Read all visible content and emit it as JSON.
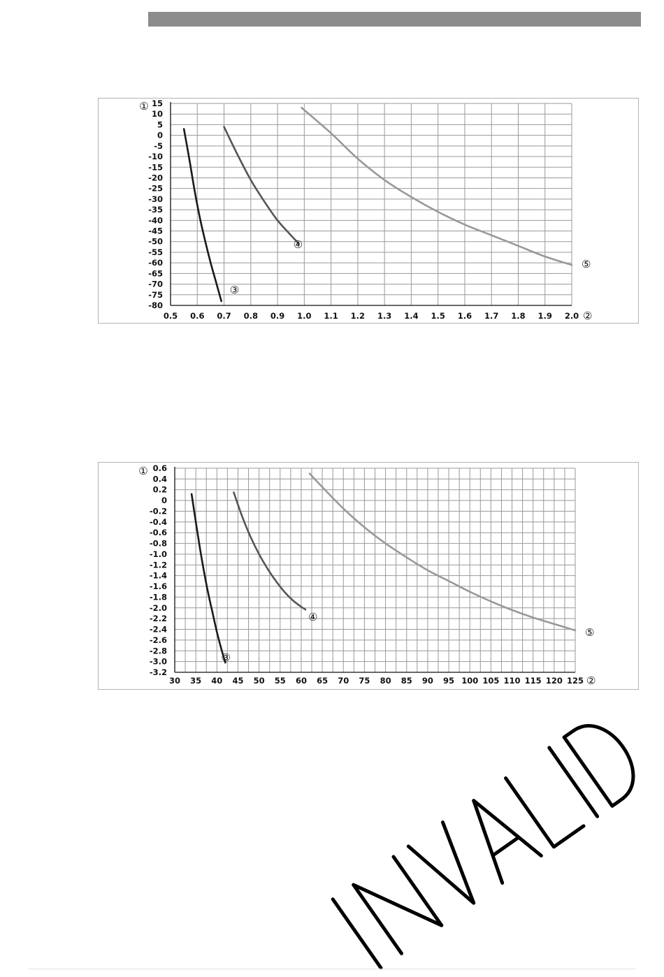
{
  "chart_data": [
    {
      "type": "line",
      "title": "",
      "xlabel": "②",
      "ylabel": "①",
      "xlim": [
        0.5,
        2.0
      ],
      "ylim": [
        -80,
        15
      ],
      "grid": true,
      "x_ticks": [
        "0.5",
        "0.6",
        "0.7",
        "0.8",
        "0.9",
        "1.0",
        "1.1",
        "1.2",
        "1.3",
        "1.4",
        "1.5",
        "1.6",
        "1.7",
        "1.8",
        "1.9",
        "2.0"
      ],
      "y_ticks": [
        "15",
        "10",
        "5",
        "0",
        "-5",
        "-10",
        "-15",
        "-20",
        "-25",
        "-30",
        "-35",
        "-40",
        "-45",
        "-50",
        "-55",
        "-60",
        "-65",
        "-70",
        "-75",
        "-80"
      ],
      "series": [
        {
          "label": "③",
          "color": "#1a1a1a",
          "points": [
            [
              0.55,
              3
            ],
            [
              0.57,
              -11
            ],
            [
              0.59,
              -26
            ],
            [
              0.61,
              -39
            ],
            [
              0.63,
              -50
            ],
            [
              0.65,
              -60
            ],
            [
              0.67,
              -69
            ],
            [
              0.69,
              -78
            ]
          ]
        },
        {
          "label": "④",
          "color": "#555555",
          "points": [
            [
              0.7,
              4
            ],
            [
              0.75,
              -9
            ],
            [
              0.8,
              -21
            ],
            [
              0.85,
              -31
            ],
            [
              0.9,
              -40
            ],
            [
              0.95,
              -47
            ],
            [
              0.98,
              -51
            ]
          ]
        },
        {
          "label": "⑤",
          "color": "#999999",
          "points": [
            [
              0.99,
              13
            ],
            [
              1.1,
              1
            ],
            [
              1.2,
              -11
            ],
            [
              1.3,
              -21
            ],
            [
              1.4,
              -29
            ],
            [
              1.5,
              -36
            ],
            [
              1.6,
              -42
            ],
            [
              1.7,
              -47
            ],
            [
              1.8,
              -52
            ],
            [
              1.9,
              -57
            ],
            [
              2.0,
              -61
            ]
          ]
        }
      ],
      "x_axis_marker": "②",
      "y_axis_marker": "①"
    },
    {
      "type": "line",
      "title": "",
      "xlabel": "②",
      "ylabel": "①",
      "xlim": [
        30,
        125
      ],
      "ylim": [
        -3.2,
        0.6
      ],
      "grid": true,
      "x_ticks": [
        "30",
        "35",
        "40",
        "45",
        "50",
        "55",
        "60",
        "65",
        "70",
        "75",
        "80",
        "85",
        "90",
        "95",
        "100",
        "105",
        "110",
        "115",
        "120",
        "125"
      ],
      "y_ticks": [
        "0.6",
        "0.4",
        "0.2",
        "0",
        "-0.2",
        "-0.4",
        "-0.6",
        "-0.8",
        "-1.0",
        "-1.2",
        "-1.4",
        "-1.6",
        "-1.8",
        "-2.0",
        "-2.2",
        "-2.4",
        "-2.6",
        "-2.8",
        "-3.0",
        "-3.2"
      ],
      "series": [
        {
          "label": "③",
          "color": "#1a1a1a",
          "points": [
            [
              34,
              0.12
            ],
            [
              35,
              -0.4
            ],
            [
              36,
              -0.9
            ],
            [
              37,
              -1.35
            ],
            [
              38,
              -1.75
            ],
            [
              39,
              -2.1
            ],
            [
              40,
              -2.45
            ],
            [
              41,
              -2.75
            ],
            [
              42,
              -3.02
            ]
          ]
        },
        {
          "label": "④",
          "color": "#555555",
          "points": [
            [
              44,
              0.15
            ],
            [
              46,
              -0.3
            ],
            [
              48,
              -0.68
            ],
            [
              50,
              -1.0
            ],
            [
              52,
              -1.27
            ],
            [
              54,
              -1.5
            ],
            [
              56,
              -1.7
            ],
            [
              58,
              -1.86
            ],
            [
              60,
              -1.98
            ],
            [
              61,
              -2.03
            ]
          ]
        },
        {
          "label": "⑤",
          "color": "#999999",
          "points": [
            [
              62,
              0.5
            ],
            [
              65,
              0.25
            ],
            [
              70,
              -0.15
            ],
            [
              75,
              -0.5
            ],
            [
              80,
              -0.8
            ],
            [
              85,
              -1.06
            ],
            [
              90,
              -1.3
            ],
            [
              95,
              -1.5
            ],
            [
              100,
              -1.7
            ],
            [
              105,
              -1.88
            ],
            [
              110,
              -2.04
            ],
            [
              115,
              -2.18
            ],
            [
              120,
              -2.3
            ],
            [
              125,
              -2.42
            ]
          ]
        }
      ],
      "x_axis_marker": "②",
      "y_axis_marker": "①"
    }
  ],
  "watermark": {
    "text": "INVALID",
    "color": "#000000"
  },
  "colors": {
    "header_bar": "#8c8c8c",
    "grid": "#999999",
    "frame": "#b3b3b3"
  }
}
